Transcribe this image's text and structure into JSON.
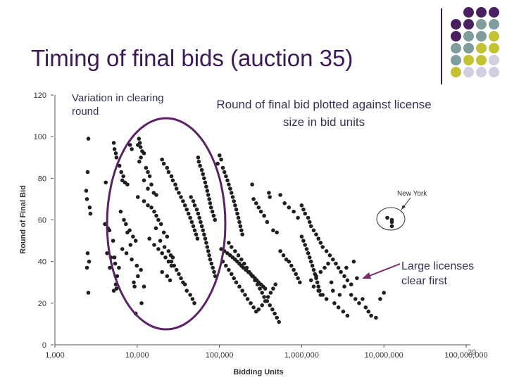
{
  "slide": {
    "title": "Timing of final bids (auction 35)",
    "page_number": "29",
    "annotations": {
      "variation": "Variation in clearing round",
      "plotted": "Round of final bid plotted against license size in bid units",
      "large": "Large licenses clear first"
    },
    "colors": {
      "title": "#3d1a56",
      "ellipse": "#5b2366",
      "arrow": "#7b2a6a",
      "points": "#1f1f1f",
      "decor_purple": "#4a2060",
      "decor_teal": "#7f9c9e",
      "decor_olive": "#c2c233",
      "decor_lavender": "#d0cfe0"
    }
  },
  "chart_data": {
    "type": "scatter",
    "xscale": "log",
    "xlim": [
      1000,
      100000000
    ],
    "ylim": [
      0,
      120
    ],
    "xlabel": "Bidding Units",
    "ylabel": "Round of Final Bid",
    "xticks": [
      1000,
      10000,
      100000,
      1000000,
      10000000,
      100000000
    ],
    "xtick_labels": [
      "1,000",
      "10,000",
      "100,000",
      "1,000,000",
      "10,000,000",
      "100,000,000"
    ],
    "yticks": [
      0,
      20,
      40,
      60,
      80,
      100,
      120
    ],
    "ytick_labels": [
      "0",
      "20",
      "40",
      "60",
      "80",
      "100",
      "120"
    ],
    "callout_label": "New York",
    "points": [
      [
        2550,
        99
      ],
      [
        2500,
        83
      ],
      [
        2400,
        74
      ],
      [
        2450,
        70
      ],
      [
        2650,
        66
      ],
      [
        2700,
        63
      ],
      [
        2500,
        44
      ],
      [
        2600,
        40
      ],
      [
        2450,
        37
      ],
      [
        2550,
        25
      ],
      [
        4150,
        78
      ],
      [
        4050,
        58
      ],
      [
        4400,
        56
      ],
      [
        4600,
        55
      ],
      [
        4300,
        44
      ],
      [
        4800,
        42
      ],
      [
        4650,
        37
      ],
      [
        5100,
        50
      ],
      [
        5300,
        42
      ],
      [
        5500,
        29
      ],
      [
        5600,
        27
      ],
      [
        5200,
        26
      ],
      [
        5400,
        39
      ],
      [
        5700,
        33
      ],
      [
        6000,
        37
      ],
      [
        5200,
        97
      ],
      [
        5300,
        94
      ],
      [
        5500,
        92
      ],
      [
        5600,
        90
      ],
      [
        6100,
        86
      ],
      [
        6400,
        83
      ],
      [
        6800,
        81
      ],
      [
        7100,
        78
      ],
      [
        6600,
        79
      ],
      [
        7600,
        77
      ],
      [
        8200,
        96
      ],
      [
        8600,
        94
      ],
      [
        6300,
        64
      ],
      [
        6900,
        60
      ],
      [
        7300,
        58
      ],
      [
        8100,
        55
      ],
      [
        7600,
        54
      ],
      [
        8900,
        52
      ],
      [
        9600,
        50
      ],
      [
        8300,
        48
      ],
      [
        6600,
        46
      ],
      [
        7400,
        44
      ],
      [
        8600,
        41
      ],
      [
        9900,
        38
      ],
      [
        11100,
        36
      ],
      [
        10200,
        33
      ],
      [
        9100,
        30
      ],
      [
        9300,
        28
      ],
      [
        12100,
        28
      ],
      [
        11300,
        20
      ],
      [
        9600,
        15
      ],
      [
        10200,
        96
      ],
      [
        10500,
        99
      ],
      [
        10800,
        97
      ],
      [
        11000,
        95
      ],
      [
        11500,
        93
      ],
      [
        12100,
        92
      ],
      [
        11100,
        90
      ],
      [
        10600,
        88
      ],
      [
        12800,
        85
      ],
      [
        13500,
        83
      ],
      [
        14200,
        81
      ],
      [
        12100,
        79
      ],
      [
        14900,
        77
      ],
      [
        13500,
        75
      ],
      [
        15900,
        73
      ],
      [
        17100,
        72
      ],
      [
        10200,
        71
      ],
      [
        12100,
        69
      ],
      [
        13500,
        67
      ],
      [
        14900,
        66
      ],
      [
        16100,
        64
      ],
      [
        17100,
        62
      ],
      [
        18100,
        60
      ],
      [
        19500,
        58
      ],
      [
        16900,
        56
      ],
      [
        21100,
        54
      ],
      [
        23100,
        52
      ],
      [
        19100,
        50
      ],
      [
        21500,
        47
      ],
      [
        24100,
        45
      ],
      [
        25600,
        43
      ],
      [
        27100,
        42
      ],
      [
        26100,
        40
      ],
      [
        28100,
        38
      ],
      [
        30100,
        36
      ],
      [
        32100,
        34
      ],
      [
        34100,
        32
      ],
      [
        36100,
        30
      ],
      [
        38100,
        29
      ],
      [
        40100,
        26
      ],
      [
        44100,
        24
      ],
      [
        47100,
        22
      ],
      [
        49600,
        20
      ],
      [
        14100,
        51
      ],
      [
        16100,
        48
      ],
      [
        18100,
        46
      ],
      [
        20100,
        44
      ],
      [
        22100,
        42
      ],
      [
        24100,
        40
      ],
      [
        26100,
        38
      ],
      [
        20100,
        35
      ],
      [
        23100,
        33
      ],
      [
        25100,
        31
      ],
      [
        20100,
        89
      ],
      [
        21100,
        87
      ],
      [
        23100,
        85
      ],
      [
        24100,
        83
      ],
      [
        26100,
        81
      ],
      [
        27100,
        79
      ],
      [
        29100,
        77
      ],
      [
        30100,
        75
      ],
      [
        32100,
        73
      ],
      [
        34100,
        71
      ],
      [
        36100,
        69
      ],
      [
        38100,
        67
      ],
      [
        40100,
        65
      ],
      [
        42100,
        63
      ],
      [
        44100,
        61
      ],
      [
        46100,
        59
      ],
      [
        48100,
        57
      ],
      [
        50100,
        55
      ],
      [
        52100,
        53
      ],
      [
        54100,
        51
      ],
      [
        55100,
        90
      ],
      [
        56100,
        88
      ],
      [
        58100,
        86
      ],
      [
        61100,
        84
      ],
      [
        63100,
        82
      ],
      [
        65100,
        80
      ],
      [
        67100,
        78
      ],
      [
        69100,
        76
      ],
      [
        71100,
        74
      ],
      [
        73100,
        72
      ],
      [
        75100,
        70
      ],
      [
        77100,
        68
      ],
      [
        79100,
        66
      ],
      [
        82100,
        64
      ],
      [
        85100,
        62
      ],
      [
        88100,
        60
      ],
      [
        45100,
        71
      ],
      [
        48100,
        69
      ],
      [
        50100,
        67
      ],
      [
        53100,
        65
      ],
      [
        55100,
        63
      ],
      [
        57100,
        61
      ],
      [
        59100,
        59
      ],
      [
        61100,
        57
      ],
      [
        63100,
        55
      ],
      [
        65100,
        53
      ],
      [
        67100,
        51
      ],
      [
        69100,
        49
      ],
      [
        71100,
        47
      ],
      [
        73100,
        45
      ],
      [
        75100,
        43
      ],
      [
        77100,
        41
      ],
      [
        80100,
        39
      ],
      [
        83100,
        37
      ],
      [
        86100,
        35
      ],
      [
        89100,
        33
      ],
      [
        100100,
        91
      ],
      [
        105100,
        89
      ],
      [
        95100,
        87
      ],
      [
        110100,
        85
      ],
      [
        115100,
        83
      ],
      [
        120100,
        81
      ],
      [
        125100,
        79
      ],
      [
        130100,
        77
      ],
      [
        135100,
        75
      ],
      [
        140100,
        73
      ],
      [
        145100,
        71
      ],
      [
        150100,
        69
      ],
      [
        155100,
        67
      ],
      [
        160100,
        65
      ],
      [
        165100,
        63
      ],
      [
        170100,
        61
      ],
      [
        175100,
        59
      ],
      [
        180100,
        57
      ],
      [
        185100,
        55
      ],
      [
        190100,
        53
      ],
      [
        105000,
        46
      ],
      [
        115000,
        45
      ],
      [
        125000,
        44
      ],
      [
        135000,
        43
      ],
      [
        145000,
        42
      ],
      [
        155000,
        41
      ],
      [
        165000,
        40
      ],
      [
        175000,
        39
      ],
      [
        185000,
        38
      ],
      [
        195000,
        37
      ],
      [
        210000,
        36
      ],
      [
        225000,
        35
      ],
      [
        240000,
        34
      ],
      [
        255000,
        33
      ],
      [
        270000,
        32
      ],
      [
        285000,
        31
      ],
      [
        300000,
        30
      ],
      [
        320000,
        29
      ],
      [
        340000,
        28
      ],
      [
        360000,
        27
      ],
      [
        110000,
        40
      ],
      [
        120000,
        38
      ],
      [
        130000,
        36
      ],
      [
        140000,
        34
      ],
      [
        150000,
        32
      ],
      [
        160000,
        30
      ],
      [
        175000,
        28
      ],
      [
        190000,
        26
      ],
      [
        205000,
        24
      ],
      [
        220000,
        22
      ],
      [
        240000,
        20
      ],
      [
        260000,
        18
      ],
      [
        280000,
        16
      ],
      [
        300000,
        17
      ],
      [
        330000,
        19
      ],
      [
        360000,
        21
      ],
      [
        390000,
        23
      ],
      [
        420000,
        25
      ],
      [
        450000,
        27
      ],
      [
        480000,
        29
      ],
      [
        130000,
        49
      ],
      [
        140000,
        47
      ],
      [
        155000,
        45
      ],
      [
        170000,
        43
      ],
      [
        185000,
        41
      ],
      [
        200000,
        39
      ],
      [
        215000,
        37
      ],
      [
        230000,
        35
      ],
      [
        250000,
        33
      ],
      [
        270000,
        31
      ],
      [
        290000,
        29
      ],
      [
        310000,
        27
      ],
      [
        330000,
        25
      ],
      [
        350000,
        23
      ],
      [
        380000,
        21
      ],
      [
        410000,
        19
      ],
      [
        440000,
        17
      ],
      [
        470000,
        15
      ],
      [
        500000,
        13
      ],
      [
        530000,
        11
      ],
      [
        250000,
        77
      ],
      [
        260000,
        70
      ],
      [
        280000,
        68
      ],
      [
        300000,
        66
      ],
      [
        320000,
        64
      ],
      [
        350000,
        62
      ],
      [
        380000,
        59
      ],
      [
        400000,
        73
      ],
      [
        410000,
        71
      ],
      [
        450000,
        55
      ],
      [
        500000,
        54
      ],
      [
        550000,
        45
      ],
      [
        600000,
        43
      ],
      [
        650000,
        41
      ],
      [
        700000,
        40
      ],
      [
        750000,
        38
      ],
      [
        800000,
        36
      ],
      [
        850000,
        34
      ],
      [
        900000,
        32
      ],
      [
        950000,
        30
      ],
      [
        550000,
        72
      ],
      [
        620000,
        68
      ],
      [
        700000,
        66
      ],
      [
        800000,
        64
      ],
      [
        900000,
        61
      ],
      [
        1000000,
        52
      ],
      [
        1050000,
        50
      ],
      [
        1100000,
        48
      ],
      [
        1150000,
        46
      ],
      [
        1200000,
        44
      ],
      [
        1250000,
        42
      ],
      [
        1300000,
        40
      ],
      [
        1350000,
        38
      ],
      [
        1400000,
        36
      ],
      [
        1450000,
        34
      ],
      [
        1500000,
        32
      ],
      [
        1550000,
        30
      ],
      [
        1600000,
        28
      ],
      [
        1650000,
        26
      ],
      [
        1700000,
        24
      ],
      [
        1000000,
        67
      ],
      [
        1050000,
        65
      ],
      [
        1100000,
        63
      ],
      [
        1200000,
        61
      ],
      [
        1250000,
        59
      ],
      [
        1300000,
        57
      ],
      [
        1400000,
        55
      ],
      [
        1500000,
        53
      ],
      [
        1600000,
        51
      ],
      [
        1700000,
        49
      ],
      [
        1800000,
        47
      ],
      [
        2000000,
        45
      ],
      [
        2200000,
        43
      ],
      [
        2400000,
        41
      ],
      [
        2600000,
        39
      ],
      [
        2800000,
        37
      ],
      [
        3000000,
        35
      ],
      [
        3300000,
        33
      ],
      [
        3600000,
        31
      ],
      [
        4000000,
        29
      ],
      [
        2500000,
        20
      ],
      [
        2800000,
        18
      ],
      [
        3200000,
        16
      ],
      [
        3600000,
        14
      ],
      [
        4000000,
        24
      ],
      [
        4500000,
        22
      ],
      [
        5000000,
        20
      ],
      [
        5500000,
        22
      ],
      [
        6000000,
        18
      ],
      [
        6500000,
        16
      ],
      [
        7000000,
        14
      ],
      [
        8000000,
        13
      ],
      [
        9000000,
        22
      ],
      [
        10000000,
        25
      ],
      [
        3500000,
        37
      ],
      [
        4300000,
        40
      ],
      [
        2400000,
        26
      ],
      [
        2900000,
        24
      ],
      [
        3300000,
        28
      ],
      [
        4700000,
        32
      ],
      [
        1300000,
        31
      ],
      [
        1500000,
        33
      ],
      [
        1700000,
        35
      ],
      [
        1900000,
        37
      ],
      [
        2100000,
        39
      ],
      [
        1400000,
        28
      ],
      [
        1600000,
        26
      ],
      [
        1800000,
        24
      ],
      [
        2000000,
        22
      ],
      [
        2300000,
        30
      ],
      [
        11000000,
        61
      ],
      [
        12500000,
        60
      ],
      [
        12500000,
        59
      ],
      [
        12500000,
        57
      ]
    ]
  }
}
